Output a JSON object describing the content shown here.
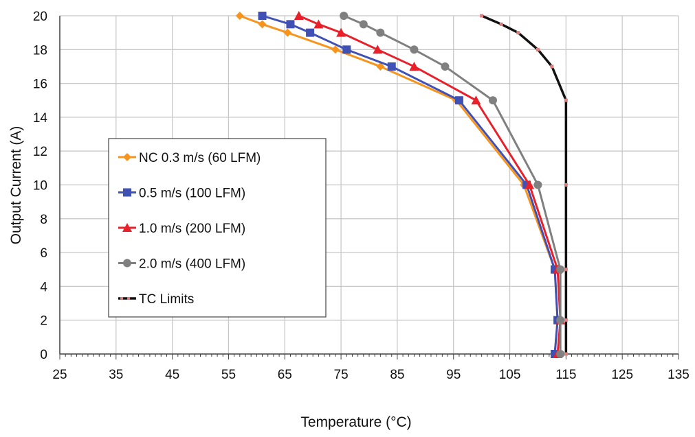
{
  "chart_data": {
    "type": "line",
    "xlabel": "Temperature (°C)",
    "ylabel": "Output Current (A)",
    "xlim": [
      25,
      135
    ],
    "ylim": [
      0,
      20
    ],
    "x_ticks": [
      25,
      35,
      45,
      55,
      65,
      75,
      85,
      95,
      105,
      115,
      125,
      135
    ],
    "y_ticks": [
      0,
      2,
      4,
      6,
      8,
      10,
      12,
      14,
      16,
      18,
      20
    ],
    "grid": true,
    "legend_position": "left-center",
    "series": [
      {
        "name": "NC 0.3 m/s (60 LFM)",
        "color": "#f7941d",
        "marker": "diamond",
        "points": [
          [
            57,
            20
          ],
          [
            61,
            19.5
          ],
          [
            65.5,
            19
          ],
          [
            74,
            18
          ],
          [
            82,
            17
          ],
          [
            95.5,
            15
          ],
          [
            107.5,
            10
          ],
          [
            113,
            5
          ],
          [
            113.5,
            2
          ],
          [
            113,
            0
          ]
        ]
      },
      {
        "name": "0.5 m/s (100 LFM)",
        "color": "#3f51b5",
        "marker": "square",
        "points": [
          [
            61,
            20
          ],
          [
            66,
            19.5
          ],
          [
            69.5,
            19
          ],
          [
            76,
            18
          ],
          [
            84,
            17
          ],
          [
            96,
            15
          ],
          [
            108,
            10
          ],
          [
            113,
            5
          ],
          [
            113.5,
            2
          ],
          [
            113,
            0
          ]
        ]
      },
      {
        "name": "1.0 m/s (200 LFM)",
        "color": "#e8202a",
        "marker": "triangle",
        "points": [
          [
            67.5,
            20
          ],
          [
            71,
            19.5
          ],
          [
            75,
            19
          ],
          [
            81.5,
            18
          ],
          [
            88,
            17
          ],
          [
            99,
            15
          ],
          [
            108.5,
            10
          ],
          [
            113.5,
            5
          ],
          [
            114,
            2
          ],
          [
            113.5,
            0
          ]
        ]
      },
      {
        "name": "2.0 m/s (400 LFM)",
        "color": "#808080",
        "marker": "circle",
        "points": [
          [
            75.5,
            20
          ],
          [
            79,
            19.5
          ],
          [
            82,
            19
          ],
          [
            88,
            18
          ],
          [
            93.5,
            17
          ],
          [
            102,
            15
          ],
          [
            110,
            10
          ],
          [
            114,
            5
          ],
          [
            114,
            2
          ],
          [
            114,
            0
          ]
        ]
      },
      {
        "name": "TC Limits",
        "color": "#111111",
        "marker": "small",
        "points": [
          [
            100,
            20
          ],
          [
            103.5,
            19.5
          ],
          [
            106.5,
            19
          ],
          [
            110,
            18
          ],
          [
            112.5,
            17
          ],
          [
            115,
            15
          ],
          [
            115,
            10
          ],
          [
            115,
            5
          ],
          [
            115,
            2
          ],
          [
            115,
            0
          ]
        ]
      }
    ]
  }
}
